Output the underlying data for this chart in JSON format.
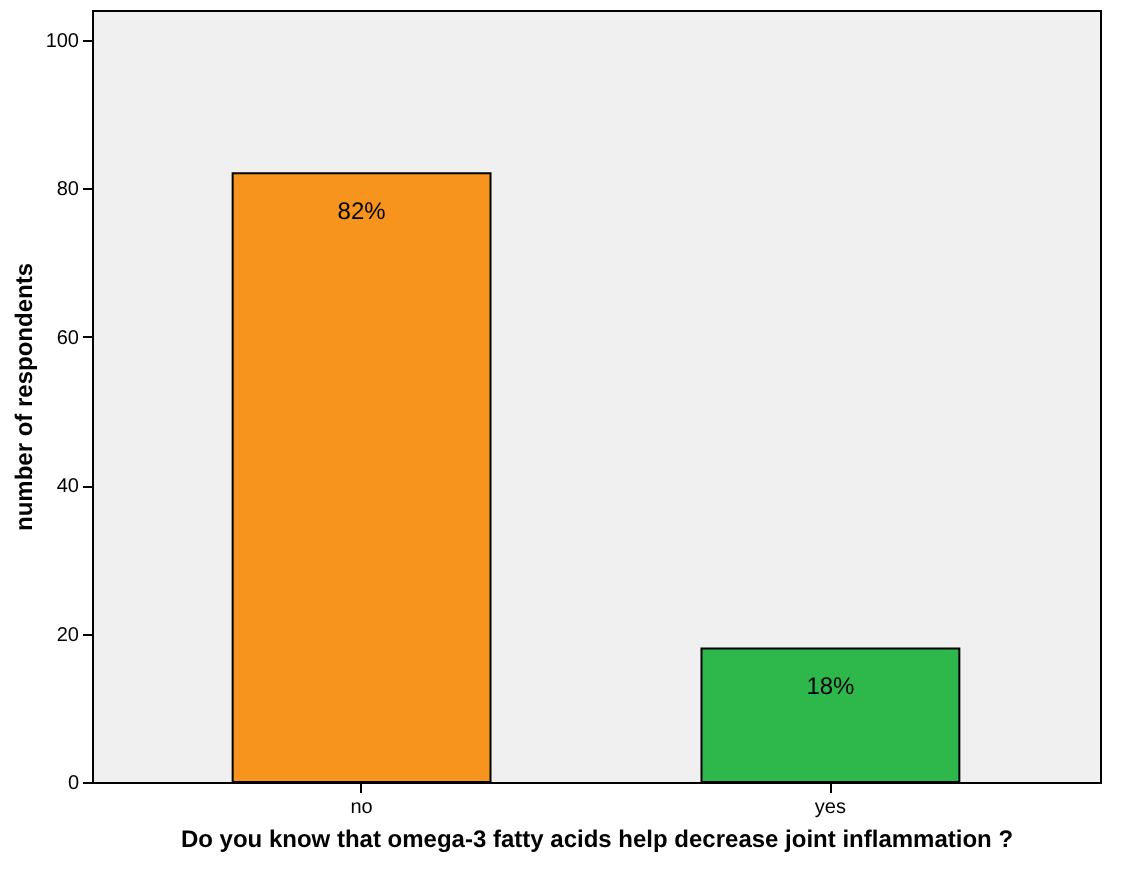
{
  "chart_data": {
    "type": "bar",
    "xlabel": "Do you know that omega-3 fatty acids help decrease joint inflammation ?",
    "ylabel": "number of respondents",
    "categories": [
      "no",
      "yes"
    ],
    "values": [
      82,
      18
    ],
    "colors": [
      "#f7941d",
      "#2eb84b"
    ],
    "value_labels": [
      "82%",
      "18%"
    ],
    "ylim": [
      0,
      104
    ],
    "yticks": [
      0,
      20,
      40,
      60,
      80,
      100
    ],
    "grid": false
  }
}
